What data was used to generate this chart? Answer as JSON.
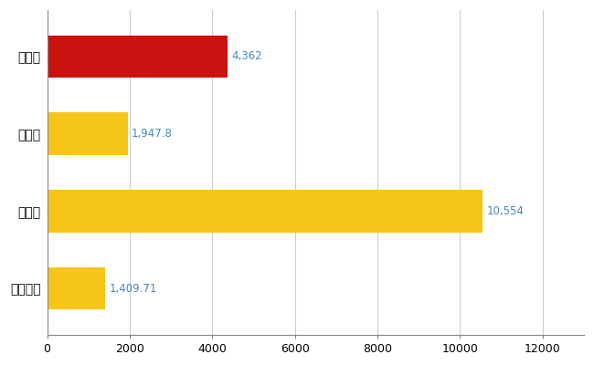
{
  "categories": [
    "高岡市",
    "県平均",
    "県最大",
    "全国平均"
  ],
  "values": [
    4362,
    1947.8,
    10554,
    1409.71
  ],
  "labels": [
    "4,362",
    "1,947.8",
    "10,554",
    "1,409.71"
  ],
  "bar_colors": [
    "#cc1111",
    "#f5c518",
    "#f5c518",
    "#f5c518"
  ],
  "xlim": [
    0,
    13000
  ],
  "xticks": [
    0,
    2000,
    4000,
    6000,
    8000,
    10000,
    12000
  ],
  "xtick_labels": [
    "0",
    "2000",
    "4000",
    "6000",
    "8000",
    "10000",
    "12000"
  ],
  "background_color": "#ffffff",
  "grid_color": "#cccccc",
  "label_color": "#4488bb",
  "label_fontsize": 8.5,
  "ytick_fontsize": 10,
  "xtick_fontsize": 9,
  "bar_height": 0.55
}
